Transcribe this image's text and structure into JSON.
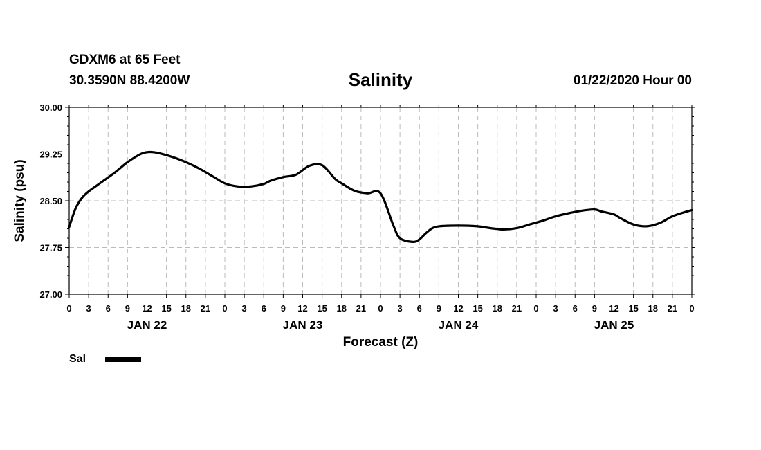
{
  "header": {
    "station": "GDXM6 at 65 Feet",
    "coords": "30.3590N 88.4200W",
    "title": "Salinity",
    "timestamp": "01/22/2020 Hour 00"
  },
  "legend": {
    "label": "Sal",
    "color": "#000000"
  },
  "chart_data": {
    "type": "line",
    "title": "Salinity",
    "xlabel": "Forecast (Z)",
    "ylabel": "Salinity (psu)",
    "ylim": [
      27.0,
      30.0
    ],
    "xlim_hours": [
      0,
      96
    ],
    "yticks": [
      "27.00",
      "27.75",
      "28.50",
      "29.25",
      "30.00"
    ],
    "xtick_hours": [
      0,
      3,
      6,
      9,
      12,
      15,
      18,
      21,
      24,
      27,
      30,
      33,
      36,
      39,
      42,
      45,
      48,
      51,
      54,
      57,
      60,
      63,
      66,
      69,
      72,
      75,
      78,
      81,
      84,
      87,
      90,
      93,
      96
    ],
    "xtick_labels": [
      "0",
      "3",
      "6",
      "9",
      "12",
      "15",
      "18",
      "21",
      "0",
      "3",
      "6",
      "9",
      "12",
      "15",
      "18",
      "21",
      "0",
      "3",
      "6",
      "9",
      "12",
      "15",
      "18",
      "21",
      "0",
      "3",
      "6",
      "9",
      "12",
      "15",
      "18",
      "21",
      "0"
    ],
    "day_labels": [
      {
        "label": "JAN 22",
        "hour": 12
      },
      {
        "label": "JAN 23",
        "hour": 36
      },
      {
        "label": "JAN 24",
        "hour": 60
      },
      {
        "label": "JAN 25",
        "hour": 84
      }
    ],
    "grid": true,
    "series": [
      {
        "name": "Sal",
        "x": [
          0,
          1,
          2,
          3,
          5,
          7,
          9,
          11,
          12,
          13,
          14,
          16,
          18,
          20,
          22,
          24,
          26,
          28,
          30,
          31,
          33,
          35,
          37,
          39,
          41,
          42,
          44,
          46,
          48,
          50,
          51,
          53,
          54,
          55,
          56,
          57,
          59,
          61,
          63,
          65,
          67,
          69,
          71,
          73,
          75,
          77,
          79,
          81,
          82,
          84,
          85,
          87,
          89,
          91,
          93,
          95,
          96
        ],
        "values": [
          28.08,
          28.38,
          28.55,
          28.65,
          28.8,
          28.95,
          29.12,
          29.25,
          29.28,
          29.28,
          29.26,
          29.2,
          29.12,
          29.02,
          28.9,
          28.78,
          28.73,
          28.73,
          28.77,
          28.82,
          28.88,
          28.92,
          29.06,
          29.07,
          28.85,
          28.78,
          28.66,
          28.62,
          28.62,
          28.1,
          27.9,
          27.84,
          27.88,
          27.98,
          28.06,
          28.09,
          28.1,
          28.1,
          28.09,
          28.06,
          28.04,
          28.06,
          28.12,
          28.18,
          28.25,
          28.3,
          28.34,
          28.36,
          28.33,
          28.28,
          28.22,
          28.12,
          28.09,
          28.14,
          28.25,
          28.32,
          28.35
        ]
      }
    ]
  }
}
